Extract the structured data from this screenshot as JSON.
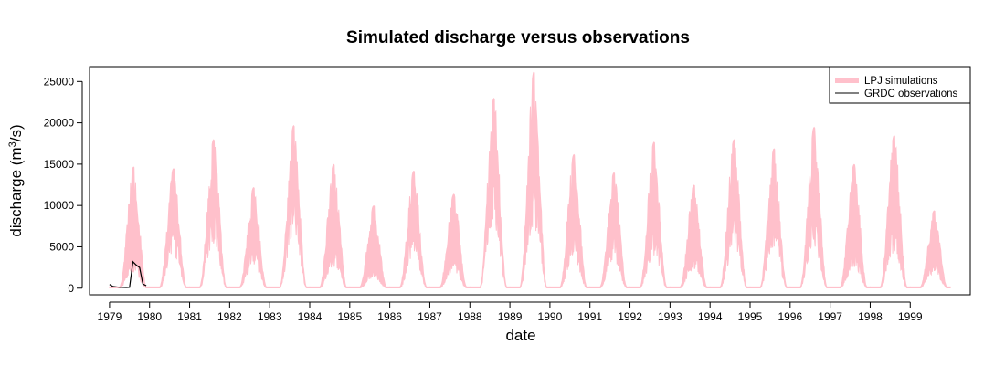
{
  "chart_data": {
    "type": "area",
    "title": "Simulated discharge versus observations",
    "xlabel": "date",
    "ylabel": "discharge (m",
    "ylabel_superscript": "3",
    "ylabel_suffix": "/s)",
    "x_ticks": [
      "1979",
      "1980",
      "1981",
      "1982",
      "1983",
      "1984",
      "1985",
      "1986",
      "1987",
      "1988",
      "1989",
      "1990",
      "1991",
      "1992",
      "1993",
      "1994",
      "1995",
      "1996",
      "1997",
      "1998",
      "1999"
    ],
    "y_ticks": [
      0,
      5000,
      10000,
      15000,
      20000,
      25000
    ],
    "y_tick_labels": [
      "0",
      "5000",
      "10000",
      "15000",
      "20000",
      "25000"
    ],
    "ylim": [
      -800,
      26800
    ],
    "xlim": [
      "1978-07",
      "2000-07"
    ],
    "grid": false,
    "legend_position": "top-right",
    "series": [
      {
        "name": "LPJ simulations",
        "color": "#ffc0cb",
        "style": "band",
        "annual_peaks": [
          {
            "year": 1979,
            "low_peak": 3800,
            "high_peak": 14500
          },
          {
            "year": 1980,
            "low_peak": 7500,
            "high_peak": 14300
          },
          {
            "year": 1981,
            "low_peak": 10500,
            "high_peak": 17800
          },
          {
            "year": 1982,
            "low_peak": 5500,
            "high_peak": 12000
          },
          {
            "year": 1983,
            "low_peak": 13000,
            "high_peak": 19500
          },
          {
            "year": 1984,
            "low_peak": 5000,
            "high_peak": 14800
          },
          {
            "year": 1985,
            "low_peak": 2500,
            "high_peak": 9800
          },
          {
            "year": 1986,
            "low_peak": 7500,
            "high_peak": 14000
          },
          {
            "year": 1987,
            "low_peak": 4000,
            "high_peak": 11200
          },
          {
            "year": 1988,
            "low_peak": 15000,
            "high_peak": 22800
          },
          {
            "year": 1989,
            "low_peak": 14500,
            "high_peak": 26000
          },
          {
            "year": 1990,
            "low_peak": 6500,
            "high_peak": 16000
          },
          {
            "year": 1991,
            "low_peak": 6000,
            "high_peak": 13800
          },
          {
            "year": 1992,
            "low_peak": 7500,
            "high_peak": 17500
          },
          {
            "year": 1993,
            "low_peak": 4500,
            "high_peak": 12300
          },
          {
            "year": 1994,
            "low_peak": 9000,
            "high_peak": 17800
          },
          {
            "year": 1995,
            "low_peak": 9500,
            "high_peak": 16700
          },
          {
            "year": 1996,
            "low_peak": 10000,
            "high_peak": 19300
          },
          {
            "year": 1997,
            "low_peak": 5000,
            "high_peak": 14800
          },
          {
            "year": 1998,
            "low_peak": 8500,
            "high_peak": 18300
          },
          {
            "year": 1999,
            "low_peak": 3500,
            "high_peak": 9200
          }
        ]
      },
      {
        "name": "GRDC observations",
        "color": "#000000",
        "style": "line",
        "points": [
          {
            "x": "1979-01",
            "y": 450
          },
          {
            "x": "1979-02",
            "y": 200
          },
          {
            "x": "1979-04",
            "y": 100
          },
          {
            "x": "1979-06",
            "y": 80
          },
          {
            "x": "1979-07",
            "y": 100
          },
          {
            "x": "1979-08",
            "y": 3200
          },
          {
            "x": "1979-09",
            "y": 2800
          },
          {
            "x": "1979-10",
            "y": 2500
          },
          {
            "x": "1979-11",
            "y": 500
          },
          {
            "x": "1979-12",
            "y": 300
          }
        ]
      }
    ]
  }
}
